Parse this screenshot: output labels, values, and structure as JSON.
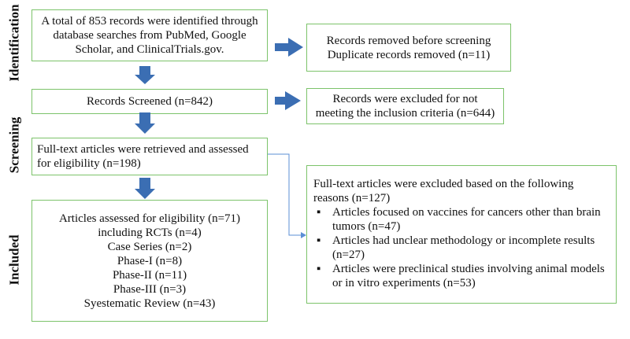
{
  "stages": {
    "identification": "Identification",
    "screening": "Screening",
    "included": "Included"
  },
  "boxes": {
    "identified": [
      "A total of 853 records were identified through",
      "database searches from PubMed, Google",
      "Scholar, and ClinicalTrials.gov."
    ],
    "removed": [
      "Records removed before screening",
      "Duplicate records removed (n=11)"
    ],
    "screened": "Records Screened (n=842)",
    "excluded_criteria": [
      "Records were excluded for not",
      "meeting the inclusion criteria (n=644)"
    ],
    "fulltext": [
      "Full-text articles were retrieved and assessed",
      "for eligibility (n=198)"
    ],
    "included": [
      "Articles assessed for eligibility (n=71)",
      "including RCTs (n=4)",
      "Case Series (n=2)",
      "Phase-I (n=8)",
      "Phase-II (n=11)",
      "Phase-III (n=3)",
      "Syestematic Review (n=43)"
    ],
    "fulltext_excluded": {
      "intro": "Full-text articles were excluded based on the following reasons (n=127)",
      "reasons": [
        "Articles focused on vaccines for cancers other than brain tumors (n=47)",
        "Articles had unclear methodology or incomplete results (n=27)",
        "Articles were preclinical studies involving animal models or in vitro experiments (n=53)"
      ]
    }
  },
  "colors": {
    "box_border": "#7cc36a",
    "arrow": "#3b6eb3",
    "connector": "#5b8fd6"
  }
}
